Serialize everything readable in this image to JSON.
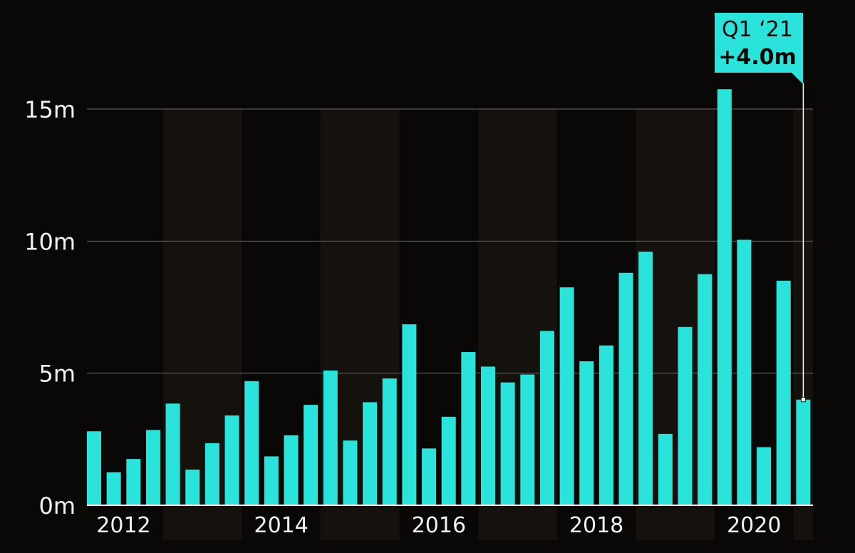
{
  "chart_data": {
    "type": "bar",
    "title": "",
    "xlabel": "",
    "ylabel": "",
    "ylim": [
      0,
      16
    ],
    "y_ticks": [
      {
        "value": 0,
        "label": "0m"
      },
      {
        "value": 5,
        "label": "5m"
      },
      {
        "value": 10,
        "label": "10m"
      },
      {
        "value": 15,
        "label": "15m"
      }
    ],
    "x_tick_labels": [
      {
        "year": 2012,
        "label": "2012"
      },
      {
        "year": 2014,
        "label": "2014"
      },
      {
        "year": 2016,
        "label": "2016"
      },
      {
        "year": 2018,
        "label": "2018"
      },
      {
        "year": 2020,
        "label": "2020"
      }
    ],
    "grid": true,
    "bar_color": "#2ae4dc",
    "background_color": "#0a0806",
    "band_color": "#15110c",
    "categories": [
      "Q1 2012",
      "Q2 2012",
      "Q3 2012",
      "Q4 2012",
      "Q1 2013",
      "Q2 2013",
      "Q3 2013",
      "Q4 2013",
      "Q1 2014",
      "Q2 2014",
      "Q3 2014",
      "Q4 2014",
      "Q1 2015",
      "Q2 2015",
      "Q3 2015",
      "Q4 2015",
      "Q1 2016",
      "Q2 2016",
      "Q3 2016",
      "Q4 2016",
      "Q1 2017",
      "Q2 2017",
      "Q3 2017",
      "Q4 2017",
      "Q1 2018",
      "Q2 2018",
      "Q3 2018",
      "Q4 2018",
      "Q1 2019",
      "Q2 2019",
      "Q3 2019",
      "Q4 2019",
      "Q1 2020",
      "Q2 2020",
      "Q3 2020",
      "Q4 2020",
      "Q1 2021"
    ],
    "values": [
      2.8,
      1.25,
      1.75,
      2.85,
      3.85,
      1.35,
      2.35,
      3.4,
      4.7,
      1.85,
      2.65,
      3.8,
      5.1,
      2.45,
      3.9,
      4.8,
      6.85,
      2.15,
      3.35,
      5.8,
      5.25,
      4.65,
      4.95,
      6.6,
      8.25,
      5.45,
      6.05,
      8.8,
      9.6,
      2.7,
      6.75,
      8.75,
      15.75,
      10.05,
      2.2,
      8.5,
      4.0
    ],
    "annotation": {
      "category": "Q1 2021",
      "line1": "Q1 ‘21",
      "line2": "+4.0m"
    }
  }
}
